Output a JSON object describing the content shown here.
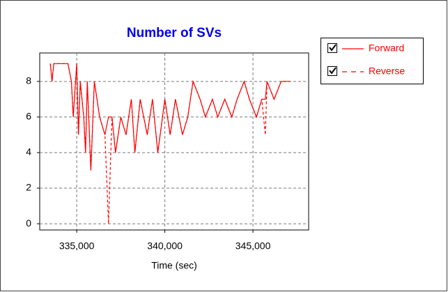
{
  "chart_data": {
    "type": "line",
    "title": "Number of SVs",
    "x_label": "Time (sec)",
    "x": [
      333500,
      333600,
      333700,
      334000,
      334500,
      334700,
      334800,
      335000,
      335100,
      335200,
      335400,
      335500,
      335600,
      335800,
      336000,
      336300,
      336600,
      336800,
      337000,
      337200,
      337500,
      337800,
      338100,
      338300,
      338600,
      339000,
      339300,
      339600,
      340000,
      340300,
      340600,
      341000,
      341300,
      341600,
      342000,
      342300,
      342700,
      343000,
      343400,
      343800,
      344100,
      344500,
      344800,
      345200,
      345500,
      345700,
      345800,
      346200,
      346600,
      347100
    ],
    "series": [
      {
        "name": "Forward",
        "color": "#ff0000",
        "linestyle": "solid",
        "values": [
          9,
          8,
          9,
          9,
          9,
          8,
          6,
          9,
          5,
          8,
          6,
          4,
          8,
          3,
          8,
          6,
          5,
          6,
          6,
          4,
          6,
          5,
          7,
          4,
          7,
          5,
          7,
          4,
          7,
          5,
          7,
          5,
          6,
          8,
          7,
          6,
          7,
          6,
          7,
          6,
          7,
          8,
          7,
          6,
          7,
          7,
          8,
          7,
          8,
          8
        ]
      },
      {
        "name": "Reverse",
        "color": "#ff0000",
        "linestyle": "dashed",
        "values": [
          9,
          8,
          9,
          9,
          9,
          8,
          6,
          9,
          5,
          8,
          6,
          4,
          8,
          3,
          8,
          6,
          5,
          0,
          6,
          4,
          6,
          5,
          7,
          4,
          7,
          5,
          7,
          4,
          7,
          5,
          7,
          5,
          6,
          8,
          7,
          6,
          7,
          6,
          7,
          6,
          7,
          8,
          7,
          6,
          7,
          5,
          8,
          7,
          8,
          8
        ]
      }
    ],
    "xlim": [
      332900,
      348160
    ],
    "xticks": [
      {
        "value": 335000,
        "label": "335,000"
      },
      {
        "value": 340000,
        "label": "340,000"
      },
      {
        "value": 345000,
        "label": "345,000"
      }
    ],
    "ylim": [
      -0.35,
      9.6
    ],
    "yticks": [
      0,
      2,
      4,
      6,
      8
    ],
    "grid": true,
    "legend": "upper right"
  }
}
